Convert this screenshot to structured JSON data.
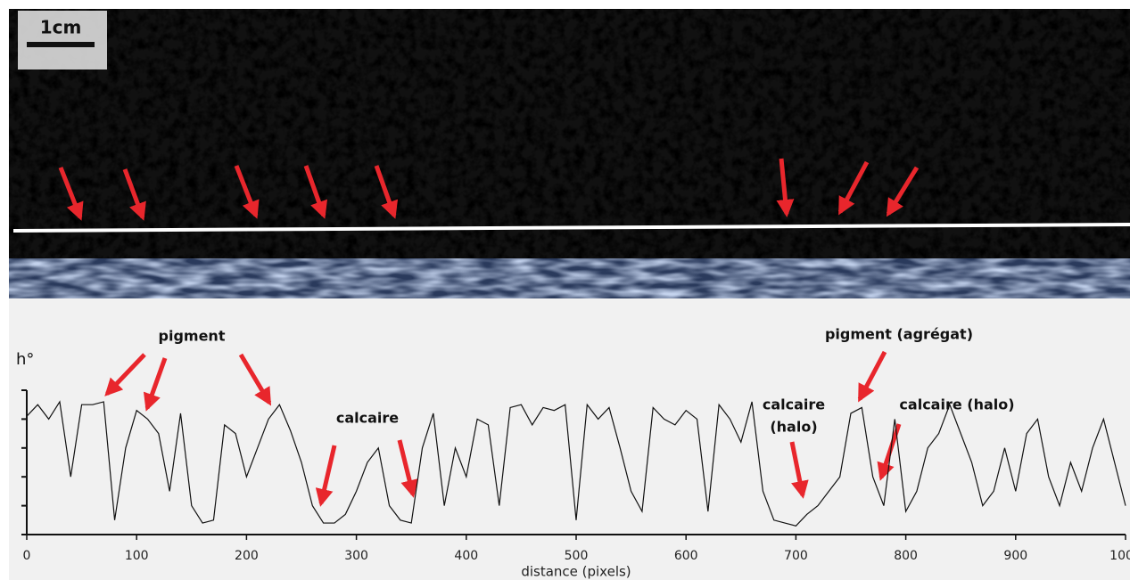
{
  "chart_data": {
    "type": "line",
    "scale_bar": "1cm",
    "ylabel": "h°",
    "xlabel": "distance (pixels)",
    "annotations": [
      "pigment",
      "calcaire",
      "calcaire",
      "(halo)",
      "pigment (agrégat)",
      "calcaire (halo)"
    ],
    "x": [
      0,
      10,
      20,
      30,
      40,
      50,
      60,
      70,
      80,
      90,
      100,
      110,
      120,
      130,
      140,
      150,
      160,
      170,
      180,
      190,
      200,
      210,
      220,
      230,
      240,
      250,
      260,
      270,
      280,
      290,
      300,
      310,
      320,
      330,
      340,
      350,
      360,
      370,
      380,
      390,
      400,
      410,
      420,
      430,
      440,
      450,
      460,
      470,
      480,
      490,
      500,
      510,
      520,
      530,
      540,
      550,
      560,
      570,
      580,
      590,
      600,
      610,
      620,
      630,
      640,
      650,
      660,
      670,
      680,
      690,
      700,
      710,
      720,
      730,
      740,
      750,
      760,
      770,
      780,
      790,
      800,
      810,
      820,
      830,
      840,
      850,
      860,
      870,
      880,
      890,
      900,
      910,
      920,
      930,
      940,
      950,
      960,
      970,
      980,
      990,
      1000
    ],
    "series": [
      {
        "name": "h°",
        "color": "#111111",
        "values": [
          4.1,
          4.5,
          4.0,
          4.6,
          2.0,
          4.5,
          4.5,
          4.6,
          0.5,
          3.0,
          4.3,
          4.0,
          3.5,
          1.5,
          4.2,
          1.0,
          0.4,
          0.5,
          3.8,
          3.5,
          2.0,
          3.0,
          4.0,
          4.5,
          3.6,
          2.5,
          1.0,
          0.4,
          0.4,
          0.7,
          1.5,
          2.5,
          3.0,
          1.0,
          0.5,
          0.4,
          3.0,
          4.2,
          1.0,
          3.0,
          2.0,
          4.0,
          3.8,
          1.0,
          4.4,
          4.5,
          3.8,
          4.4,
          4.3,
          4.5,
          0.5,
          4.5,
          4.0,
          4.4,
          3.0,
          1.5,
          0.8,
          4.4,
          4.0,
          3.8,
          4.3,
          4.0,
          0.8,
          4.5,
          4.0,
          3.2,
          4.6,
          1.5,
          0.5,
          0.4,
          0.3,
          0.7,
          1.0,
          1.5,
          2.0,
          4.2,
          4.4,
          2.0,
          1.0,
          4.0,
          0.8,
          1.5,
          3.0,
          3.5,
          4.5,
          3.5,
          2.5,
          1.0,
          1.5,
          3.0,
          1.5,
          3.5,
          4.0,
          2.0,
          1.0,
          2.5,
          1.5,
          3.0,
          4.0,
          2.5,
          1.0
        ]
      }
    ],
    "xlim": [
      0,
      1000
    ],
    "xticks": [
      0,
      100,
      200,
      300,
      400,
      500,
      600,
      700,
      800,
      900,
      1000
    ],
    "ylim": [
      0,
      5
    ],
    "yticks": [
      0,
      1,
      2,
      3,
      4,
      5
    ],
    "grid": false
  }
}
